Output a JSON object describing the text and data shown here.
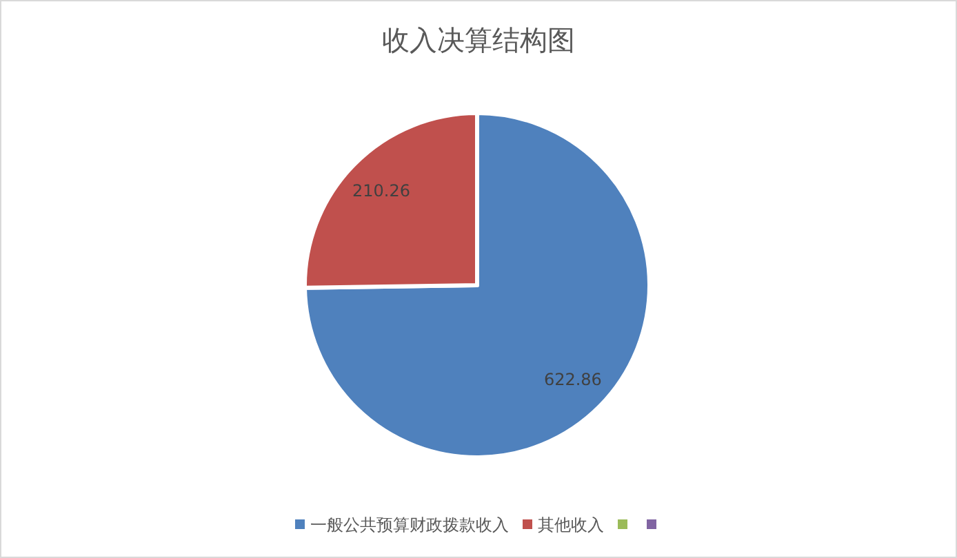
{
  "chart_data": {
    "type": "pie",
    "title": "收入决算结构图",
    "categories": [
      "一般公共预算财政拨款收入",
      "其他收入",
      null,
      null
    ],
    "values": [
      622.86,
      210.26,
      0,
      0
    ],
    "colors": [
      "#4f81bd",
      "#c0504d",
      "#9bbb59",
      "#8064a2"
    ],
    "value_labels": [
      "622.86",
      "210.26",
      null,
      null
    ],
    "legend": "bottom"
  }
}
